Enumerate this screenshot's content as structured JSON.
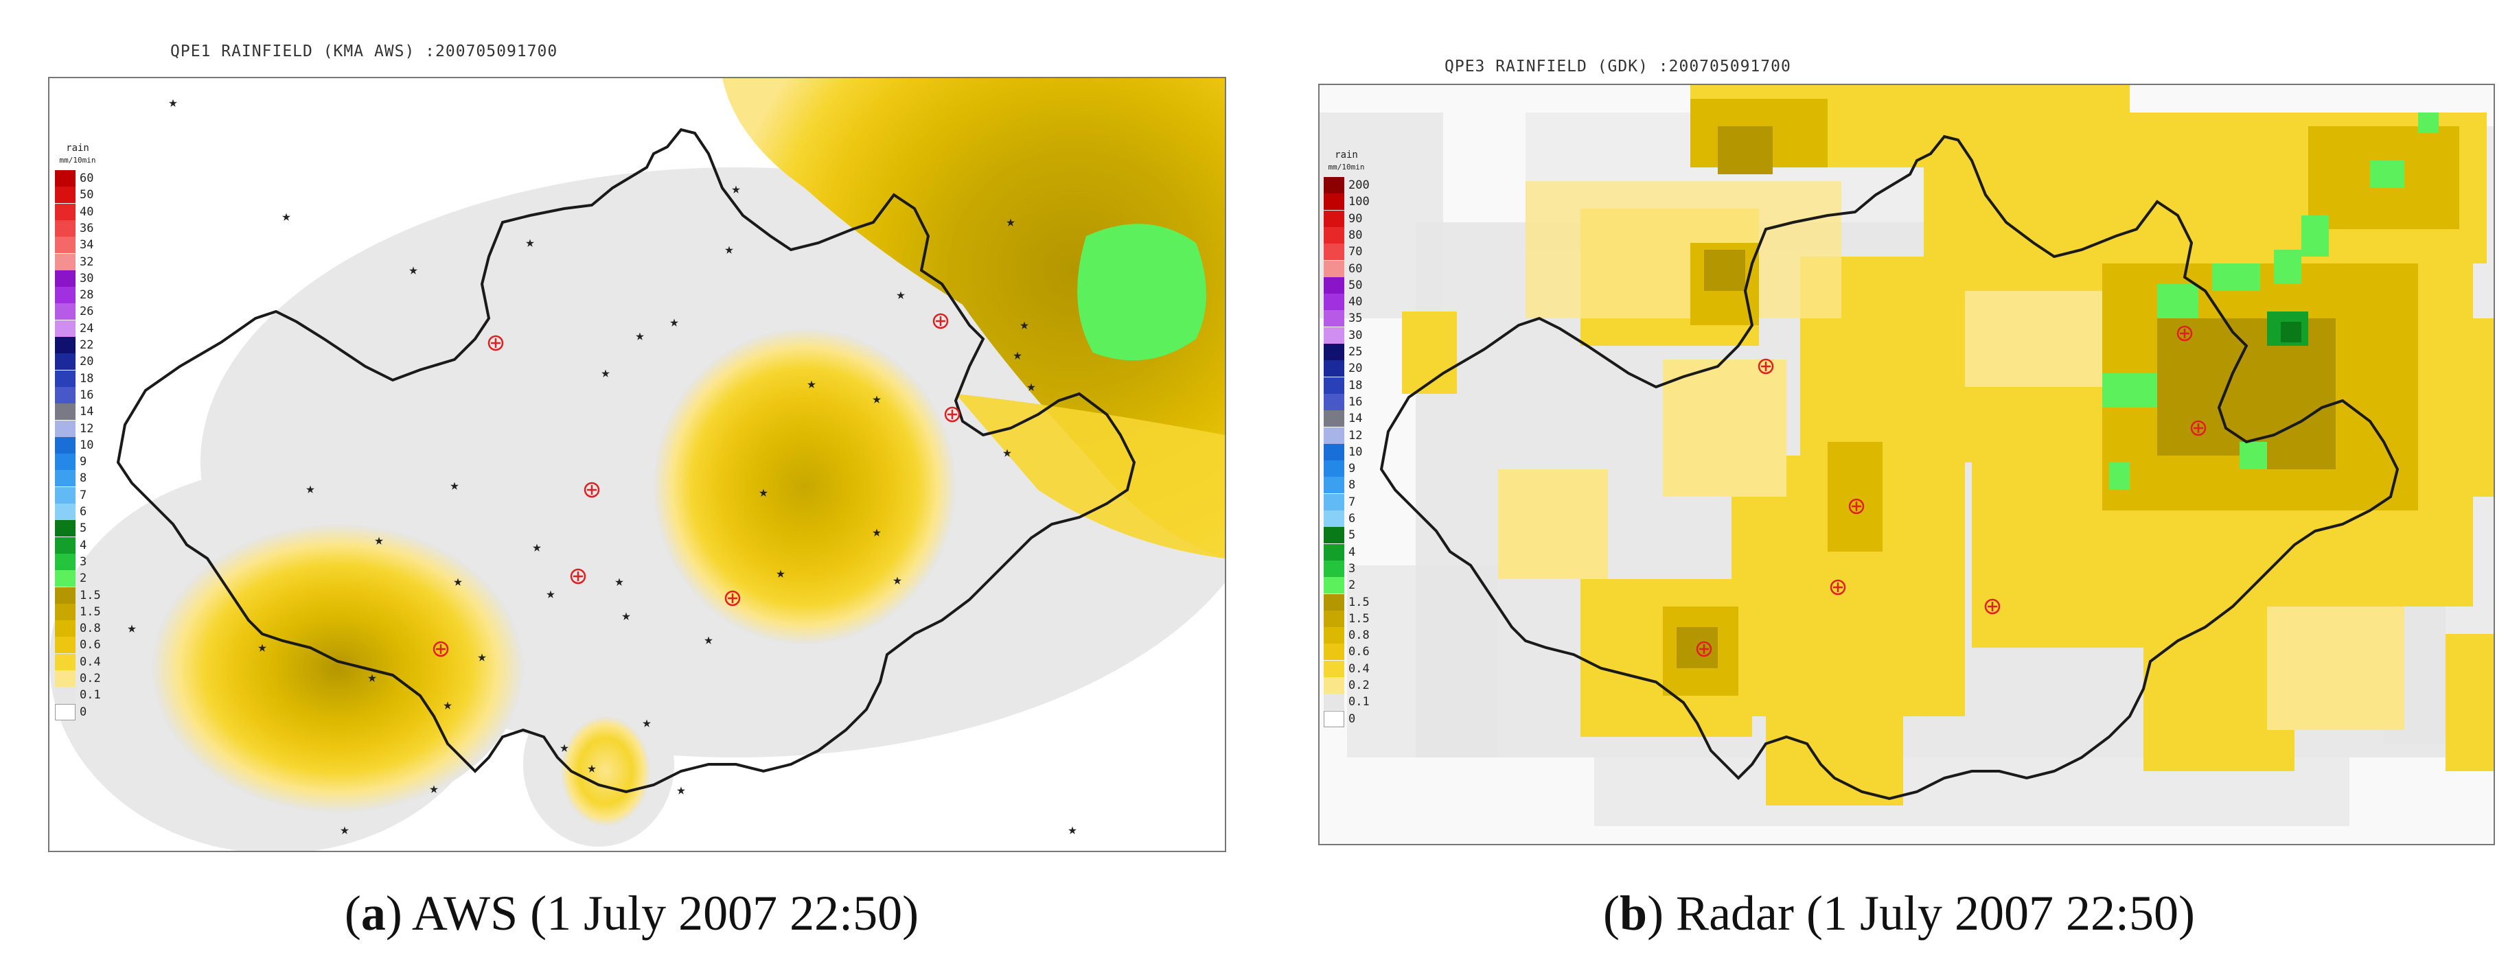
{
  "panels": [
    {
      "id": "a",
      "title": "QPE1 RAINFIELD (KMA AWS) :200705091700",
      "caption_letter": "a",
      "caption_text": "AWS (1 July 2007 22:50)",
      "legend_unit_1": "rain",
      "legend_unit_2": "mm/10min",
      "legend": [
        {
          "label": "60",
          "color": "#c00000"
        },
        {
          "label": "50",
          "color": "#d81010"
        },
        {
          "label": "40",
          "color": "#e82828"
        },
        {
          "label": "36",
          "color": "#f04848"
        },
        {
          "label": "34",
          "color": "#f46868"
        },
        {
          "label": "32",
          "color": "#f49090"
        },
        {
          "label": "30",
          "color": "#8a14c8"
        },
        {
          "label": "28",
          "color": "#a030e0"
        },
        {
          "label": "26",
          "color": "#b85ae8"
        },
        {
          "label": "24",
          "color": "#d08ef0"
        },
        {
          "label": "22",
          "color": "#10106e"
        },
        {
          "label": "20",
          "color": "#1a2a9a"
        },
        {
          "label": "18",
          "color": "#2a40b8"
        },
        {
          "label": "16",
          "color": "#4858c8"
        },
        {
          "label": "14",
          "color": "#7a7a86"
        },
        {
          "label": "12",
          "color": "#a8b4e8"
        },
        {
          "label": "10",
          "color": "#1a6ed8"
        },
        {
          "label": "9",
          "color": "#2488e8"
        },
        {
          "label": "8",
          "color": "#3ca0f0"
        },
        {
          "label": "7",
          "color": "#62baf4"
        },
        {
          "label": "6",
          "color": "#88d0f8"
        },
        {
          "label": "5",
          "color": "#0a7a18"
        },
        {
          "label": "4",
          "color": "#12a02a"
        },
        {
          "label": "3",
          "color": "#24c43c"
        },
        {
          "label": "2",
          "color": "#5cf05c"
        },
        {
          "label": "1.5",
          "color": "#b49600"
        },
        {
          "label": "1.5",
          "color": "#c8a800"
        },
        {
          "label": "0.8",
          "color": "#dcb800"
        },
        {
          "label": "0.6",
          "color": "#ecc610"
        },
        {
          "label": "0.4",
          "color": "#f6d630"
        },
        {
          "label": "0.2",
          "color": "#fce68a"
        },
        {
          "label": "0.1",
          "color": "#e6e6e6"
        },
        {
          "label": "0",
          "color": "#ffffff"
        }
      ]
    },
    {
      "id": "b",
      "title": "QPE3 RAINFIELD (GDK) :200705091700",
      "caption_letter": "b",
      "caption_text": "Radar (1 July 2007 22:50)",
      "legend_unit_1": "rain",
      "legend_unit_2": "mm/10min",
      "legend": [
        {
          "label": "200",
          "color": "#8c0000"
        },
        {
          "label": "100",
          "color": "#c00000"
        },
        {
          "label": "90",
          "color": "#d81010"
        },
        {
          "label": "80",
          "color": "#e82828"
        },
        {
          "label": "70",
          "color": "#f04848"
        },
        {
          "label": "60",
          "color": "#f49090"
        },
        {
          "label": "50",
          "color": "#8a14c8"
        },
        {
          "label": "40",
          "color": "#a030e0"
        },
        {
          "label": "35",
          "color": "#b85ae8"
        },
        {
          "label": "30",
          "color": "#d08ef0"
        },
        {
          "label": "25",
          "color": "#10106e"
        },
        {
          "label": "20",
          "color": "#1a2a9a"
        },
        {
          "label": "18",
          "color": "#2a40b8"
        },
        {
          "label": "16",
          "color": "#4858c8"
        },
        {
          "label": "14",
          "color": "#7a7a86"
        },
        {
          "label": "12",
          "color": "#a8b4e8"
        },
        {
          "label": "10",
          "color": "#1a6ed8"
        },
        {
          "label": "9",
          "color": "#2488e8"
        },
        {
          "label": "8",
          "color": "#3ca0f0"
        },
        {
          "label": "7",
          "color": "#62baf4"
        },
        {
          "label": "6",
          "color": "#88d0f8"
        },
        {
          "label": "5",
          "color": "#0a7a18"
        },
        {
          "label": "4",
          "color": "#12a02a"
        },
        {
          "label": "3",
          "color": "#24c43c"
        },
        {
          "label": "2",
          "color": "#5cf05c"
        },
        {
          "label": "1.5",
          "color": "#b49600"
        },
        {
          "label": "1.5",
          "color": "#c8a800"
        },
        {
          "label": "0.8",
          "color": "#dcb800"
        },
        {
          "label": "0.6",
          "color": "#ecc610"
        },
        {
          "label": "0.4",
          "color": "#f6d630"
        },
        {
          "label": "0.2",
          "color": "#fce68a"
        },
        {
          "label": "0.1",
          "color": "#e6e6e6"
        },
        {
          "label": "0",
          "color": "#ffffff"
        }
      ]
    }
  ]
}
